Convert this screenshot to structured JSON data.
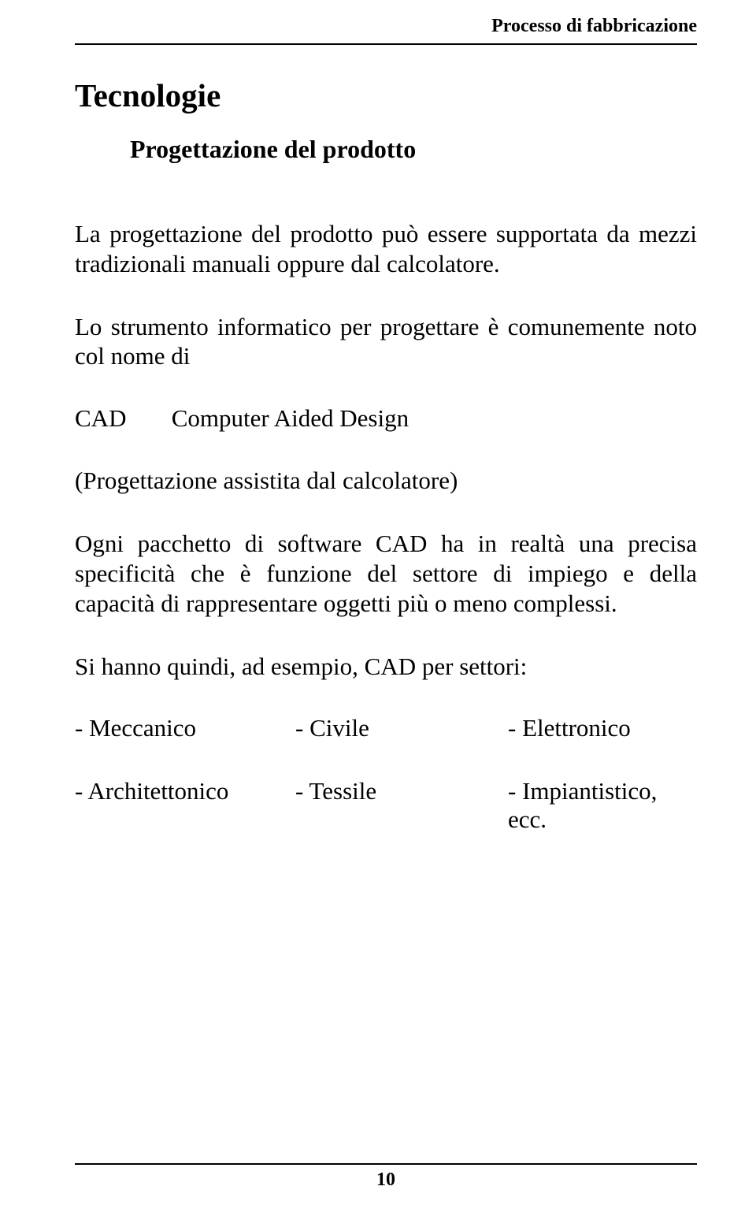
{
  "header": {
    "running_title": "Processo di fabbricazione"
  },
  "title": "Tecnologie",
  "subtitle": "Progettazione del prodotto",
  "p1": "La progettazione del prodotto può essere supportata da mezzi tradizionali manuali oppure dal calcolatore.",
  "p2": "Lo strumento informatico per progettare è comunemente noto col nome di",
  "cad": {
    "abbr": "CAD",
    "full": "Computer Aided Design"
  },
  "p3": "(Progettazione assistita dal calcolatore)",
  "p4": "Ogni pacchetto di software CAD ha in realtà una precisa specificità che è funzione del settore di impiego e della capacità di rappresentare oggetti più o meno complessi.",
  "p5": "Si hanno quindi, ad esempio, CAD per settori:",
  "sectors": {
    "row1": {
      "c1": "- Meccanico",
      "c2": "- Civile",
      "c3": "- Elettronico"
    },
    "row2": {
      "c1": "- Architettonico",
      "c2": "- Tessile",
      "c3": "- Impiantistico, ecc."
    }
  },
  "page_number": "10"
}
